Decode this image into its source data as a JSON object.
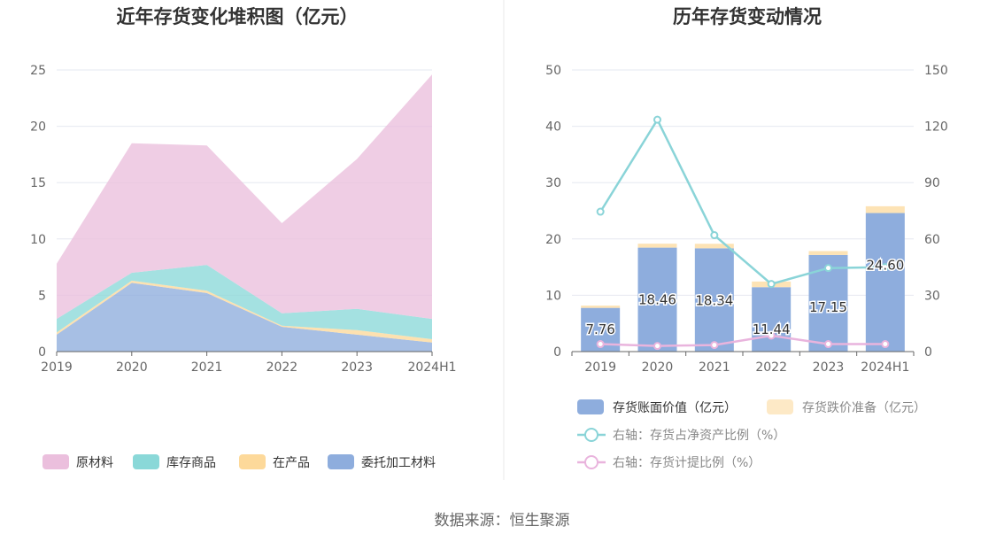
{
  "chart_data": [
    {
      "type": "area",
      "stacked": true,
      "title": "近年存货变化堆积图（亿元）",
      "categories": [
        "2019",
        "2020",
        "2021",
        "2022",
        "2023",
        "2024H1"
      ],
      "ylim": [
        0,
        25
      ],
      "yticks": [
        0,
        5,
        10,
        15,
        20,
        25
      ],
      "grid": true,
      "legend_position": "bottom",
      "series": [
        {
          "name": "委托加工材料",
          "color": "#8eaddd",
          "values": [
            1.5,
            6.1,
            5.2,
            2.2,
            1.5,
            0.8
          ]
        },
        {
          "name": "在产品",
          "color": "#fdd99a",
          "values": [
            0.2,
            0.2,
            0.2,
            0.1,
            0.4,
            0.3
          ]
        },
        {
          "name": "库存商品",
          "color": "#8ad8d8",
          "values": [
            1.2,
            0.7,
            2.3,
            1.1,
            1.9,
            1.8
          ]
        },
        {
          "name": "原材料",
          "color": "#ebbfdd",
          "values": [
            4.9,
            11.5,
            10.6,
            8.0,
            13.3,
            21.7
          ]
        }
      ]
    },
    {
      "type": "bar",
      "title": "历年存货变动情况",
      "categories": [
        "2019",
        "2020",
        "2021",
        "2022",
        "2023",
        "2024H1"
      ],
      "ylim": [
        0,
        50
      ],
      "yticks": [
        0,
        10,
        20,
        30,
        40,
        50
      ],
      "y2lim": [
        0,
        150
      ],
      "y2ticks": [
        0,
        30,
        60,
        90,
        120,
        150
      ],
      "grid": true,
      "legend_position": "bottom",
      "bars": [
        {
          "name": "存货账面价值（亿元）",
          "color": "#8eaddd",
          "values": [
            7.76,
            18.46,
            18.34,
            11.44,
            17.15,
            24.6
          ],
          "labels": [
            "7.76",
            "18.46",
            "18.34",
            "11.44",
            "17.15",
            "24.60"
          ]
        },
        {
          "name": "存货跌价准备（亿元）",
          "color": "#fde3b5",
          "legend_color": "#fde9c6",
          "values": [
            0.4,
            0.7,
            0.8,
            1.0,
            0.7,
            1.2
          ]
        }
      ],
      "lines": [
        {
          "name": "右轴：存货占净资产比例（%）",
          "color": "#8ad4d8",
          "axis": "right",
          "values": [
            74.5,
            123.5,
            62.0,
            36.0,
            44.5,
            45.0
          ]
        },
        {
          "name": "右轴：存货计提比例（%）",
          "color": "#e9b4dd",
          "axis": "right",
          "values": [
            4.0,
            3.0,
            3.5,
            8.5,
            4.0,
            4.0
          ]
        }
      ]
    }
  ],
  "source": "数据来源：恒生聚源"
}
